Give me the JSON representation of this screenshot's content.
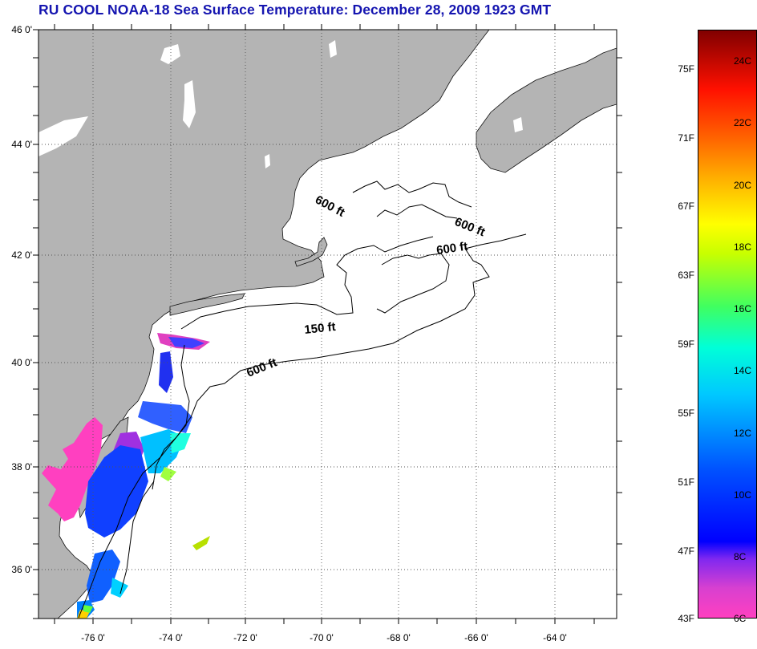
{
  "title": "RU COOL  NOAA-18  Sea Surface Temperature:  December 28, 2009 1923 GMT",
  "map": {
    "lat_labels": [
      "46 0'",
      "44 0'",
      "42 0'",
      "40 0'",
      "38 0'",
      "36 0'"
    ],
    "lon_labels": [
      "-76 0'",
      "-74 0'",
      "-72 0'",
      "-70 0'",
      "-68 0'",
      "-66 0'",
      "-64 0'"
    ],
    "contour_labels": [
      "600 ft",
      "600 ft",
      "600 ft",
      "150 ft",
      "600 ft"
    ],
    "colors": {
      "land": "#b4b4b4",
      "ocean": "#ffffff",
      "grid": "#555555"
    }
  },
  "colorbar": {
    "fahrenheit_labels": [
      "75F",
      "71F",
      "67F",
      "63F",
      "59F",
      "55F",
      "51F",
      "47F",
      "43F"
    ],
    "celsius_labels": [
      "24C",
      "22C",
      "20C",
      "18C",
      "16C",
      "14C",
      "12C",
      "10C",
      "8C",
      "6C"
    ],
    "gradient_stops": [
      "#ff40c0",
      "#b040e0",
      "#8028f0",
      "#0000ff",
      "#0060ff",
      "#00d0ff",
      "#00ffd0",
      "#40ff40",
      "#c0ff00",
      "#ffff00",
      "#ffb000",
      "#ff6000",
      "#ff1000",
      "#c00000",
      "#800000"
    ]
  }
}
